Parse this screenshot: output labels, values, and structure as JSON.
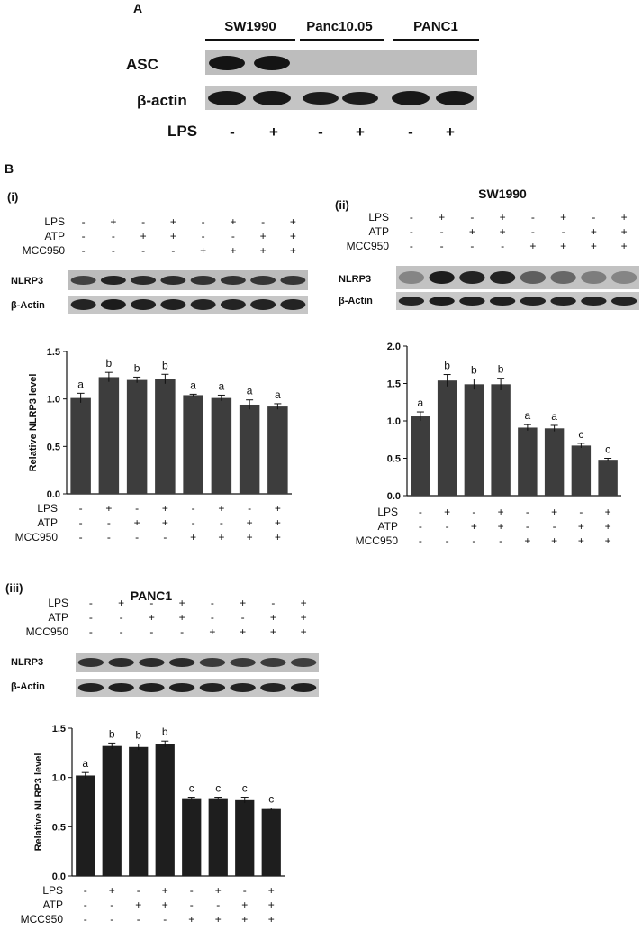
{
  "panel_A": {
    "label": "A",
    "cell_lines": [
      "SW1990",
      "Panc10.05",
      "PANC1"
    ],
    "rows": [
      "ASC",
      "β-actin"
    ],
    "lps_label": "LPS",
    "lps_signs": [
      "-",
      "+",
      "-",
      "+",
      "-",
      "+"
    ]
  },
  "panel_B": {
    "label": "B",
    "row_labels": [
      "LPS",
      "ATP",
      "MCC950"
    ],
    "signs": {
      "LPS": [
        "-",
        "+",
        "-",
        "+",
        "-",
        "+",
        "-",
        "+"
      ],
      "ATP": [
        "-",
        "-",
        "+",
        "+",
        "-",
        "-",
        "+",
        "+"
      ],
      "MCC950": [
        "-",
        "-",
        "-",
        "-",
        "+",
        "+",
        "+",
        "+"
      ]
    },
    "subpanels": [
      {
        "id": "i",
        "label": "(i)",
        "title": "",
        "blot_rows": [
          "NLRP3",
          "β-Actin"
        ]
      },
      {
        "id": "ii",
        "label": "(ii)",
        "title": "SW1990",
        "blot_rows": [
          "NLRP3",
          "β-Actin"
        ]
      },
      {
        "id": "iii",
        "label": "(iii)",
        "title": "PANC1",
        "blot_rows": [
          "NLRP3",
          "β-Actin"
        ]
      }
    ]
  },
  "chart_data": [
    {
      "id": "i",
      "type": "bar",
      "ylabel": "Relative NLRP3 level",
      "ylim": [
        0,
        1.5
      ],
      "yticks": [
        "0.0",
        "0.5",
        "1.0",
        "1.5"
      ],
      "values": [
        1.01,
        1.23,
        1.2,
        1.21,
        1.04,
        1.01,
        0.94,
        0.92
      ],
      "errors": [
        0.05,
        0.05,
        0.03,
        0.05,
        0.01,
        0.03,
        0.05,
        0.03
      ],
      "labels": [
        "a",
        "b",
        "b",
        "b",
        "a",
        "a",
        "a",
        "a"
      ],
      "bar_color": "#3d3d3d"
    },
    {
      "id": "ii",
      "type": "bar",
      "ylabel": "",
      "ylim": [
        0,
        2.0
      ],
      "yticks": [
        "0.0",
        "0.5",
        "1.0",
        "1.5",
        "2.0"
      ],
      "values": [
        1.06,
        1.54,
        1.49,
        1.49,
        0.91,
        0.9,
        0.67,
        0.48
      ],
      "errors": [
        0.06,
        0.08,
        0.07,
        0.08,
        0.04,
        0.04,
        0.03,
        0.02
      ],
      "labels": [
        "a",
        "b",
        "b",
        "b",
        "a",
        "a",
        "c",
        "c"
      ],
      "bar_color": "#3d3d3d"
    },
    {
      "id": "iii",
      "type": "bar",
      "ylabel": "Relative NLRP3 level",
      "ylim": [
        0,
        1.5
      ],
      "yticks": [
        "0.0",
        "0.5",
        "1.0",
        "1.5"
      ],
      "values": [
        1.02,
        1.32,
        1.31,
        1.34,
        0.79,
        0.79,
        0.77,
        0.68
      ],
      "errors": [
        0.03,
        0.03,
        0.03,
        0.03,
        0.01,
        0.01,
        0.03,
        0.01
      ],
      "labels": [
        "a",
        "b",
        "b",
        "b",
        "c",
        "c",
        "c",
        "c"
      ],
      "bar_color": "#1e1e1e"
    }
  ]
}
